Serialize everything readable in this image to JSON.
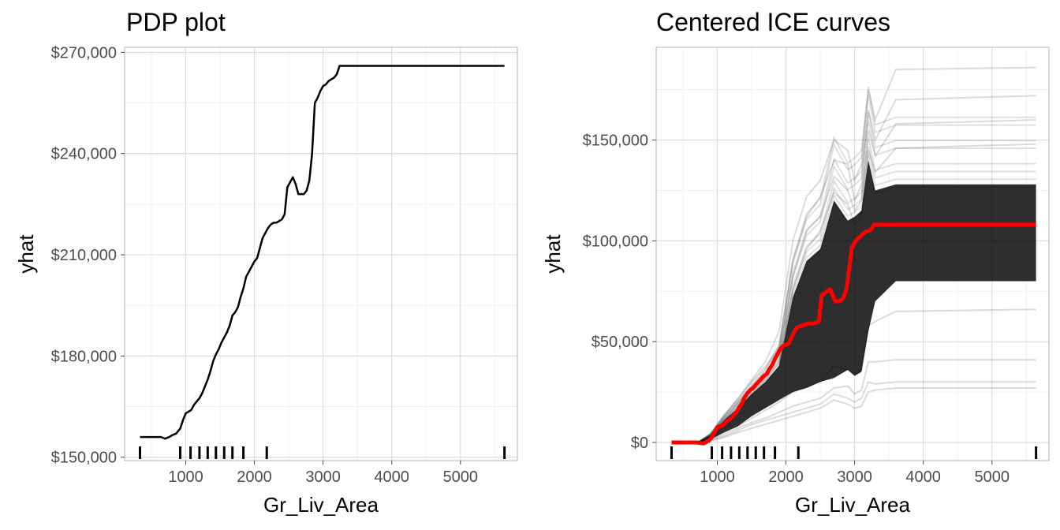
{
  "chart_data": [
    {
      "type": "line",
      "title": "PDP plot",
      "xlabel": "Gr_Liv_Area",
      "ylabel": "yhat",
      "xlim": [
        110,
        5830
      ],
      "ylim": [
        149000,
        271500
      ],
      "x_ticks": [
        1000,
        2000,
        3000,
        4000,
        5000
      ],
      "x_tick_labels": [
        "1000",
        "2000",
        "3000",
        "4000",
        "5000"
      ],
      "y_ticks": [
        150000,
        180000,
        210000,
        240000,
        270000
      ],
      "y_tick_labels": [
        "$150,000",
        "$180,000",
        "$210,000",
        "$240,000",
        "$270,000"
      ],
      "grid": true,
      "rug_x": [
        334,
        920,
        1070,
        1200,
        1320,
        1440,
        1560,
        1680,
        1840,
        2180,
        5642
      ],
      "series": [
        {
          "color": "#000000",
          "x": [
            334,
            470,
            560,
            640,
            700,
            760,
            800,
            860,
            880,
            920,
            960,
            1000,
            1040,
            1080,
            1120,
            1160,
            1200,
            1240,
            1280,
            1320,
            1360,
            1400,
            1440,
            1480,
            1520,
            1560,
            1600,
            1640,
            1680,
            1720,
            1760,
            1800,
            1840,
            1880,
            1920,
            1960,
            2000,
            2040,
            2080,
            2120,
            2160,
            2200,
            2240,
            2280,
            2320,
            2360,
            2400,
            2440,
            2480,
            2520,
            2560,
            2600,
            2640,
            2680,
            2720,
            2760,
            2800,
            2840,
            2880,
            2920,
            2960,
            3000,
            3040,
            3080,
            3120,
            3160,
            3200,
            3240,
            3280,
            3320,
            3360,
            3400,
            3440,
            3480,
            3520,
            3560,
            3600,
            4000,
            4500,
            5000,
            5642
          ],
          "values": [
            156000,
            156000,
            156000,
            156000,
            155500,
            156000,
            156500,
            157000,
            157500,
            158500,
            161000,
            163000,
            163500,
            164000,
            165500,
            166500,
            167500,
            169000,
            171000,
            173000,
            175500,
            178500,
            180500,
            182000,
            184000,
            185500,
            187000,
            189000,
            192000,
            193000,
            194500,
            197500,
            200000,
            203500,
            205000,
            206500,
            208000,
            209000,
            212000,
            215000,
            216500,
            218000,
            219000,
            219500,
            219500,
            220000,
            220500,
            222000,
            230000,
            231500,
            233000,
            231000,
            228000,
            228000,
            228000,
            229000,
            232000,
            240000,
            255000,
            256500,
            258500,
            260000,
            260500,
            261500,
            262000,
            262500,
            263500,
            266000,
            266000,
            266000,
            266000,
            266000,
            266000,
            266000,
            266000,
            266000,
            266000,
            266000,
            266000,
            266000,
            266000
          ]
        }
      ]
    },
    {
      "type": "line",
      "title": "Centered ICE curves",
      "xlabel": "Gr_Liv_Area",
      "ylabel": "yhat",
      "xlim": [
        110,
        5830
      ],
      "ylim": [
        -9000,
        196000
      ],
      "x_ticks": [
        1000,
        2000,
        3000,
        4000,
        5000
      ],
      "x_tick_labels": [
        "1000",
        "2000",
        "3000",
        "4000",
        "5000"
      ],
      "y_ticks": [
        0,
        50000,
        100000,
        150000
      ],
      "y_tick_labels": [
        "$0",
        "$50,000",
        "$100,000",
        "$150,000"
      ],
      "grid": true,
      "rug_x": [
        334,
        920,
        1070,
        1200,
        1320,
        1440,
        1560,
        1680,
        1840,
        2180,
        5642
      ],
      "ice_band": {
        "color": "#000000",
        "x": [
          334,
          700,
          900,
          1100,
          1300,
          1500,
          1700,
          1900,
          2100,
          2300,
          2500,
          2700,
          2900,
          3000,
          3100,
          3200,
          3300,
          3600,
          5642
        ],
        "lower": [
          0,
          -500,
          1500,
          5000,
          8000,
          13000,
          17000,
          21000,
          25000,
          27000,
          30000,
          32000,
          36000,
          33000,
          35000,
          55000,
          70000,
          80000,
          80000
        ],
        "upper": [
          0,
          -500,
          3500,
          11000,
          17000,
          24000,
          30000,
          38000,
          72000,
          90000,
          96000,
          120000,
          110000,
          112000,
          115000,
          140000,
          125000,
          128000,
          128000
        ],
        "individual_curves": [
          {
            "y_end": 186000,
            "values": [
              0,
              0,
              4000,
              13000,
              22000,
              31000,
              40000,
              55000,
              100000,
              122000,
              130000,
              150000,
              145000,
              130000,
              138000,
              175000,
              160000,
              185000,
              186000
            ]
          },
          {
            "y_end": 172000,
            "values": [
              0,
              0,
              3500,
              12000,
              20000,
              28000,
              36000,
              48000,
              90000,
              112000,
              122000,
              140000,
              138000,
              120000,
              128000,
              165000,
              150000,
              170000,
              172000
            ]
          },
          {
            "y_end": 160000,
            "values": [
              0,
              0,
              3000,
              11000,
              19000,
              26000,
              34000,
              44000,
              82000,
              105000,
              112000,
              132000,
              125000,
              115000,
              120000,
              155000,
              142000,
              158000,
              160000
            ]
          },
          {
            "y_end": 148000,
            "values": [
              0,
              0,
              2800,
              10000,
              17000,
              24000,
              31000,
              40000,
              76000,
              96000,
              105000,
              124000,
              118000,
              108000,
              112000,
              145000,
              134000,
              146000,
              148000
            ]
          },
          {
            "y_end": 66000,
            "values": [
              0,
              0,
              1500,
              5000,
              8000,
              12000,
              16000,
              20000,
              25000,
              28000,
              30000,
              38000,
              36000,
              34000,
              36000,
              58000,
              60000,
              65000,
              66000
            ]
          },
          {
            "y_end": 41000,
            "values": [
              0,
              0,
              1200,
              4000,
              7000,
              10000,
              12000,
              15000,
              18000,
              20000,
              22000,
              27000,
              28000,
              24000,
              26000,
              40000,
              40000,
              41000,
              41000
            ]
          },
          {
            "y_end": 30000,
            "values": [
              0,
              0,
              1000,
              3000,
              6000,
              9000,
              11000,
              13000,
              15000,
              17000,
              19000,
              24000,
              22000,
              20000,
              22000,
              30000,
              29000,
              30000,
              30000
            ]
          },
          {
            "y_end": 27000,
            "values": [
              0,
              0,
              800,
              2500,
              5000,
              7000,
              9000,
              11000,
              13000,
              15000,
              17000,
              21000,
              19000,
              17000,
              18000,
              25000,
              26000,
              27000,
              27000
            ]
          }
        ]
      },
      "series": [
        {
          "color": "#ff0000",
          "x": [
            334,
            500,
            600,
            700,
            800,
            880,
            920,
            960,
            1000,
            1040,
            1080,
            1120,
            1160,
            1200,
            1240,
            1280,
            1320,
            1360,
            1400,
            1440,
            1480,
            1520,
            1560,
            1600,
            1640,
            1680,
            1720,
            1760,
            1800,
            1840,
            1880,
            1920,
            1960,
            2000,
            2040,
            2080,
            2120,
            2160,
            2200,
            2240,
            2280,
            2320,
            2360,
            2400,
            2440,
            2480,
            2520,
            2560,
            2600,
            2640,
            2680,
            2720,
            2760,
            2800,
            2840,
            2880,
            2920,
            2960,
            3000,
            3040,
            3080,
            3120,
            3160,
            3200,
            3240,
            3280,
            3320,
            3360,
            3400,
            3440,
            3480,
            3520,
            3560,
            3600,
            4000,
            4500,
            5000,
            5642
          ],
          "values": [
            0,
            0,
            0,
            0,
            -500,
            1000,
            2500,
            5000,
            7500,
            8000,
            8500,
            10000,
            11000,
            12000,
            13500,
            15000,
            17500,
            19500,
            22500,
            24500,
            26000,
            27000,
            28500,
            30000,
            31500,
            33000,
            34000,
            36500,
            38500,
            41500,
            44000,
            46500,
            48000,
            48500,
            49000,
            52000,
            55000,
            57000,
            57500,
            58000,
            58500,
            59000,
            59000,
            59000,
            59500,
            60000,
            73000,
            74000,
            75000,
            76000,
            73000,
            70000,
            70000,
            70500,
            72000,
            76000,
            86000,
            97000,
            99000,
            101000,
            102000,
            103500,
            104500,
            105000,
            105500,
            108000,
            108000,
            108000,
            108000,
            108000,
            108000,
            108000,
            108000,
            108000,
            108000,
            108000,
            108000,
            108000
          ]
        }
      ]
    }
  ]
}
